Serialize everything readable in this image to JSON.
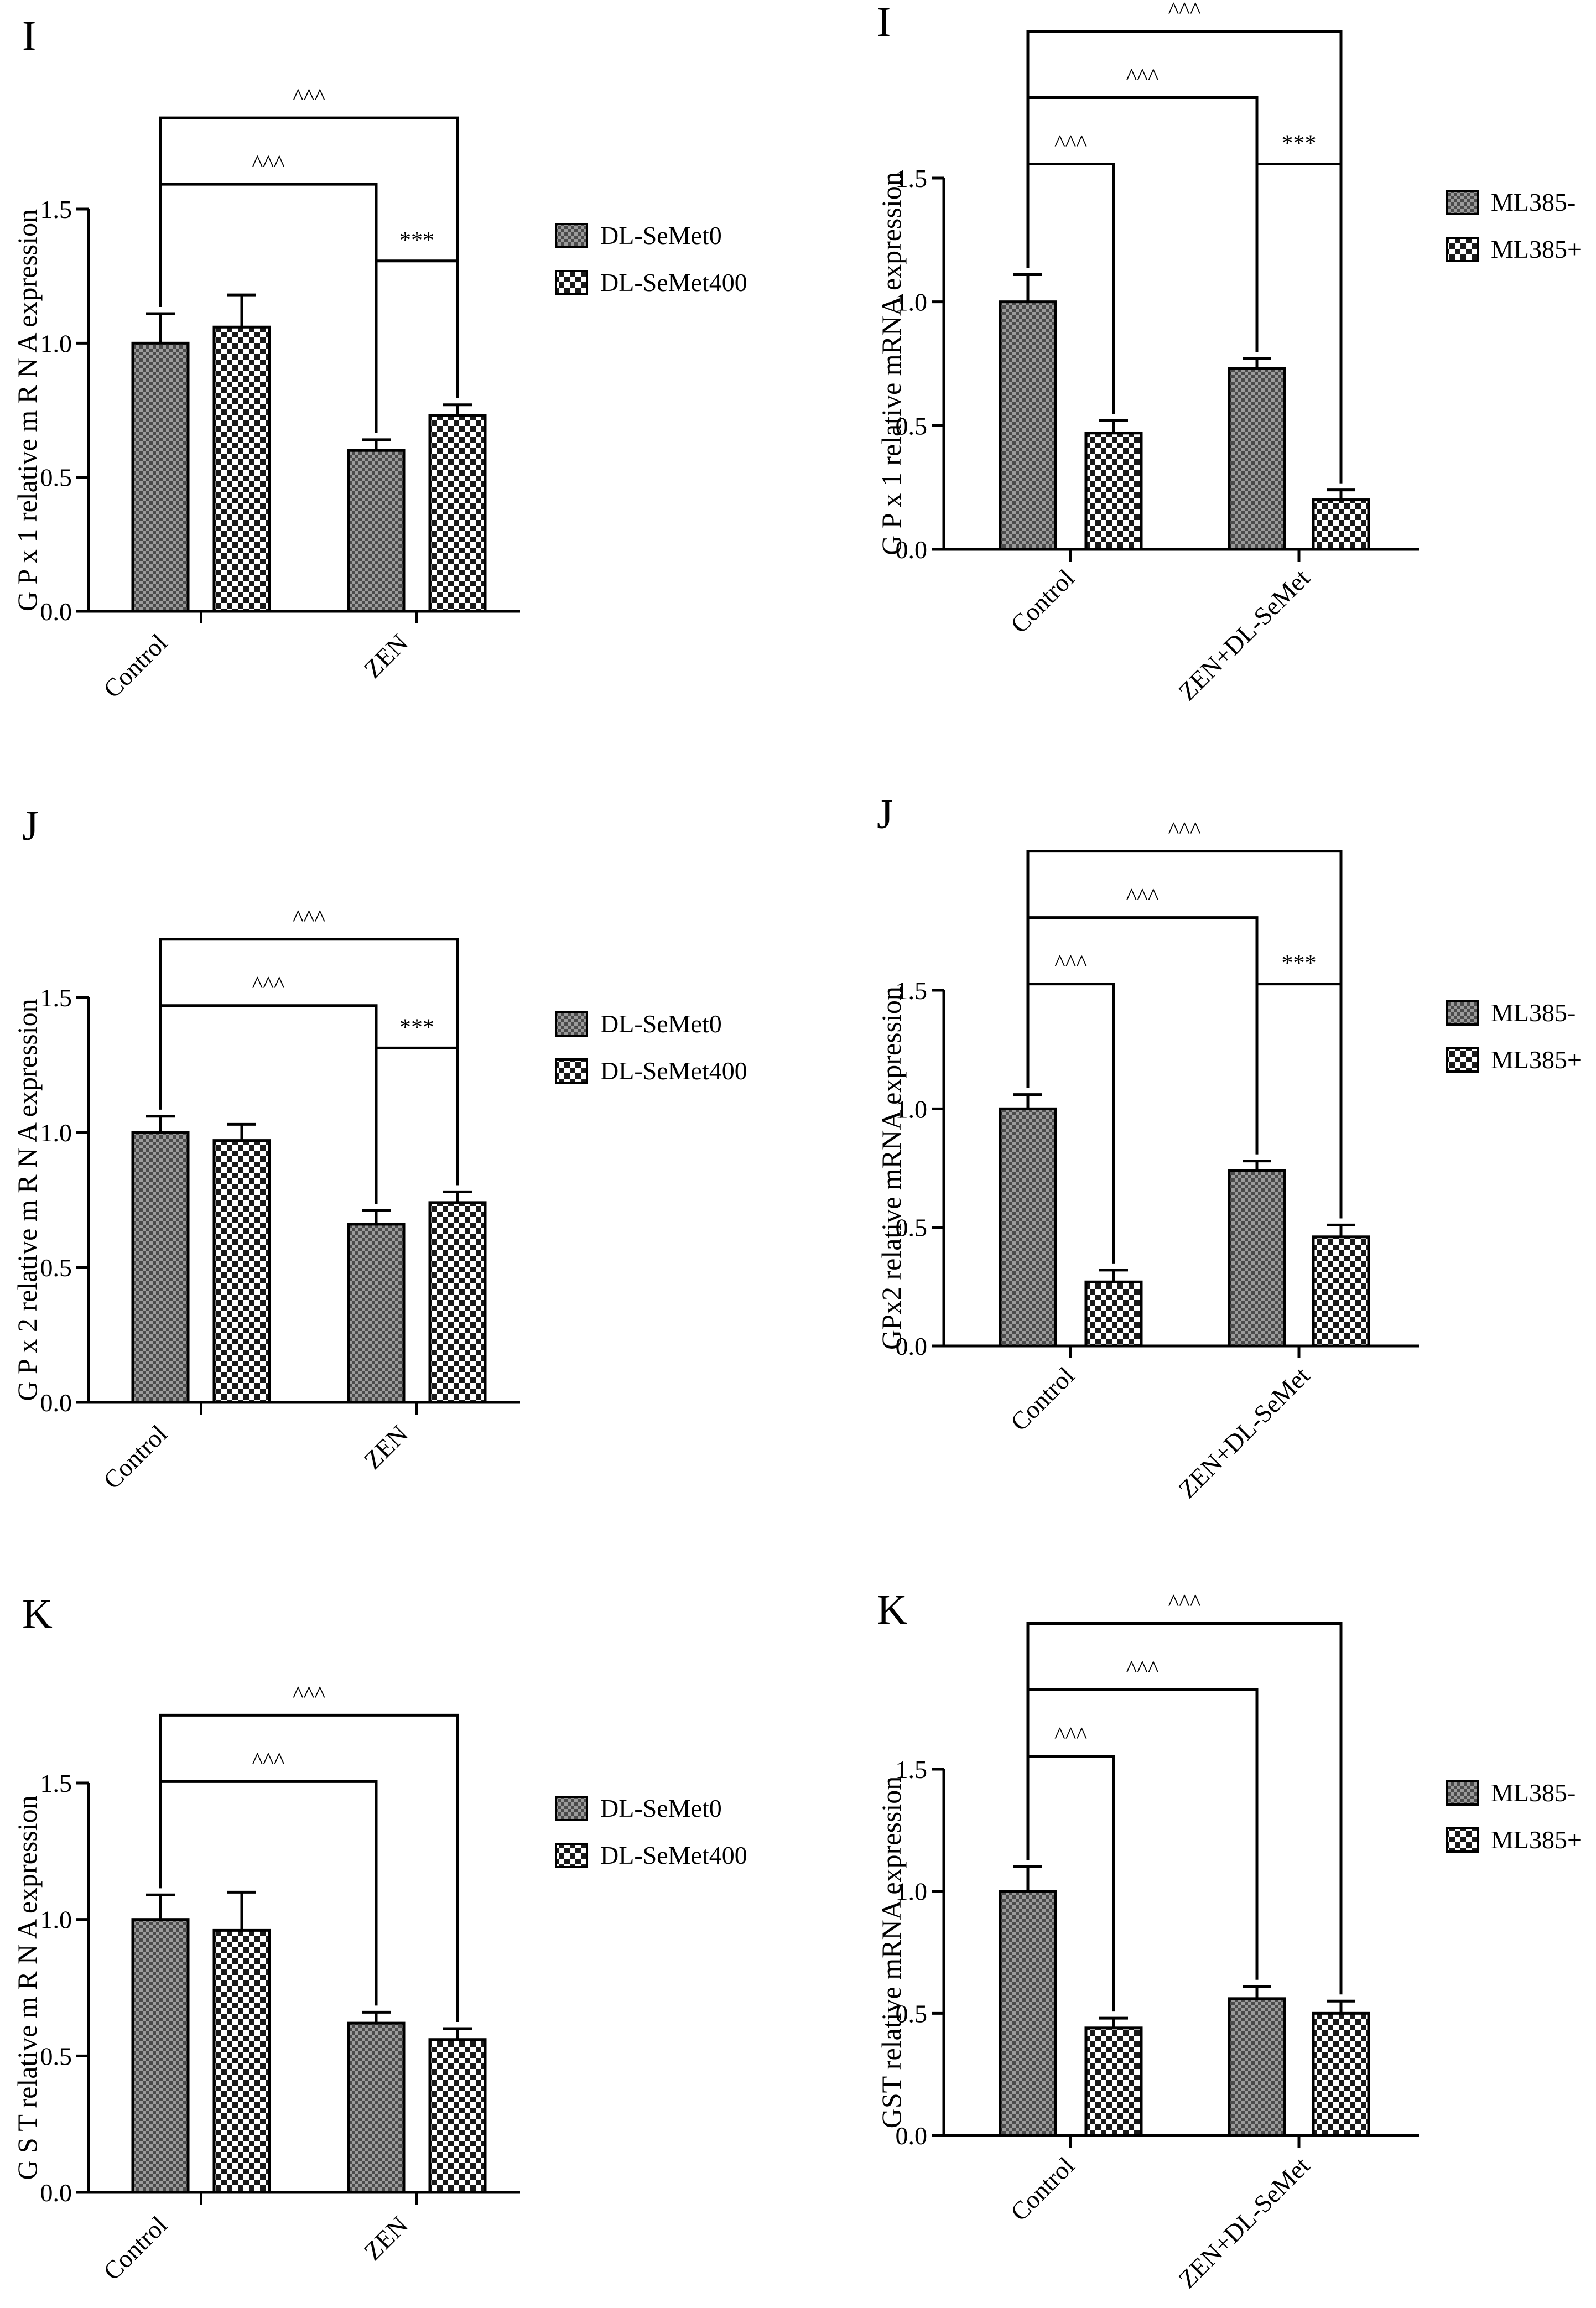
{
  "colors": {
    "ink": "#000000",
    "background": "#ffffff",
    "series_dark_fill": "#7a7a7a",
    "series_light_fill": "#ffffff"
  },
  "chart_data": [
    {
      "type": "bar",
      "panel": "I",
      "ylabel": "G P x 1  relative  m R N A  expression",
      "categories": [
        "Control",
        "ZEN"
      ],
      "series": [
        {
          "name": "DL-SeMet0",
          "pattern": "dark-check",
          "values": [
            1.0,
            0.6
          ],
          "errors": [
            0.11,
            0.04
          ]
        },
        {
          "name": "DL-SeMet400",
          "pattern": "light-check",
          "values": [
            1.06,
            0.73
          ],
          "errors": [
            0.12,
            0.04
          ]
        }
      ],
      "ylim": [
        0,
        1.5
      ],
      "yticks": [
        "0.0",
        "0.5",
        "1.0",
        "1.5"
      ],
      "brackets": [
        {
          "from": [
            0,
            0
          ],
          "to": [
            1,
            1
          ],
          "label": "^^^",
          "tier": 2
        },
        {
          "from": [
            0,
            0
          ],
          "to": [
            1,
            0
          ],
          "label": "^^^",
          "tier": 1
        },
        {
          "from": [
            1,
            0
          ],
          "to": [
            1,
            1
          ],
          "label": "***",
          "tier": 0
        }
      ]
    },
    {
      "type": "bar",
      "panel": "I",
      "ylabel": "G P x 1  relative  mRNA  expression",
      "categories": [
        "Control",
        "ZEN+DL-SeMet"
      ],
      "series": [
        {
          "name": "ML385-",
          "pattern": "dark-check",
          "values": [
            1.0,
            0.73
          ],
          "errors": [
            0.11,
            0.04
          ]
        },
        {
          "name": "ML385+",
          "pattern": "light-check",
          "values": [
            0.47,
            0.2
          ],
          "errors": [
            0.05,
            0.04
          ]
        }
      ],
      "ylim": [
        0,
        1.5
      ],
      "yticks": [
        "0.0",
        "0.5",
        "1.0",
        "1.5"
      ],
      "brackets": [
        {
          "from": [
            0,
            0
          ],
          "to": [
            1,
            1
          ],
          "label": "^^^",
          "tier": 3
        },
        {
          "from": [
            0,
            0
          ],
          "to": [
            1,
            0
          ],
          "label": "^^^",
          "tier": 2
        },
        {
          "from": [
            0,
            0
          ],
          "to": [
            0,
            1
          ],
          "label": "^^^",
          "tier": 1
        },
        {
          "from": [
            1,
            0
          ],
          "to": [
            1,
            1
          ],
          "label": "***",
          "tier": 1
        }
      ]
    },
    {
      "type": "bar",
      "panel": "J",
      "ylabel": "G P x 2  relative  m R N A  expression",
      "categories": [
        "Control",
        "ZEN"
      ],
      "series": [
        {
          "name": "DL-SeMet0",
          "pattern": "dark-check",
          "values": [
            1.0,
            0.66
          ],
          "errors": [
            0.06,
            0.05
          ]
        },
        {
          "name": "DL-SeMet400",
          "pattern": "light-check",
          "values": [
            0.97,
            0.74
          ],
          "errors": [
            0.06,
            0.04
          ]
        }
      ],
      "ylim": [
        0,
        1.5
      ],
      "yticks": [
        "0.0",
        "0.5",
        "1.0",
        "1.5"
      ],
      "brackets": [
        {
          "from": [
            0,
            0
          ],
          "to": [
            1,
            1
          ],
          "label": "^^^",
          "tier": 2
        },
        {
          "from": [
            0,
            0
          ],
          "to": [
            1,
            0
          ],
          "label": "^^^",
          "tier": 1
        },
        {
          "from": [
            1,
            0
          ],
          "to": [
            1,
            1
          ],
          "label": "***",
          "tier": 0
        }
      ]
    },
    {
      "type": "bar",
      "panel": "J",
      "ylabel": "GPx2  relative  mRNA  expression",
      "categories": [
        "Control",
        "ZEN+DL-SeMet"
      ],
      "series": [
        {
          "name": "ML385-",
          "pattern": "dark-check",
          "values": [
            1.0,
            0.74
          ],
          "errors": [
            0.06,
            0.04
          ]
        },
        {
          "name": "ML385+",
          "pattern": "light-check",
          "values": [
            0.27,
            0.46
          ],
          "errors": [
            0.05,
            0.05
          ]
        }
      ],
      "ylim": [
        0,
        1.5
      ],
      "yticks": [
        "0.0",
        "0.5",
        "1.0",
        "1.5"
      ],
      "brackets": [
        {
          "from": [
            0,
            0
          ],
          "to": [
            1,
            1
          ],
          "label": "^^^",
          "tier": 3
        },
        {
          "from": [
            0,
            0
          ],
          "to": [
            1,
            0
          ],
          "label": "^^^",
          "tier": 2
        },
        {
          "from": [
            0,
            0
          ],
          "to": [
            0,
            1
          ],
          "label": "^^^",
          "tier": 1
        },
        {
          "from": [
            1,
            0
          ],
          "to": [
            1,
            1
          ],
          "label": "***",
          "tier": 1
        }
      ]
    },
    {
      "type": "bar",
      "panel": "K",
      "ylabel": "G S T  relative  m R N A  expression",
      "categories": [
        "Control",
        "ZEN"
      ],
      "series": [
        {
          "name": "DL-SeMet0",
          "pattern": "dark-check",
          "values": [
            1.0,
            0.62
          ],
          "errors": [
            0.09,
            0.04
          ]
        },
        {
          "name": "DL-SeMet400",
          "pattern": "light-check",
          "values": [
            0.96,
            0.56
          ],
          "errors": [
            0.14,
            0.04
          ]
        }
      ],
      "ylim": [
        0,
        1.5
      ],
      "yticks": [
        "0.0",
        "0.5",
        "1.0",
        "1.5"
      ],
      "brackets": [
        {
          "from": [
            0,
            0
          ],
          "to": [
            1,
            1
          ],
          "label": "^^^",
          "tier": 2
        },
        {
          "from": [
            0,
            0
          ],
          "to": [
            1,
            0
          ],
          "label": "^^^",
          "tier": 1
        }
      ]
    },
    {
      "type": "bar",
      "panel": "K",
      "ylabel": "GST  relative  mRNA  expression",
      "categories": [
        "Control",
        "ZEN+DL-SeMet"
      ],
      "series": [
        {
          "name": "ML385-",
          "pattern": "dark-check",
          "values": [
            1.0,
            0.56
          ],
          "errors": [
            0.1,
            0.05
          ]
        },
        {
          "name": "ML385+",
          "pattern": "light-check",
          "values": [
            0.44,
            0.5
          ],
          "errors": [
            0.04,
            0.05
          ]
        }
      ],
      "ylim": [
        0,
        1.5
      ],
      "yticks": [
        "0.0",
        "0.5",
        "1.0",
        "1.5"
      ],
      "brackets": [
        {
          "from": [
            0,
            0
          ],
          "to": [
            1,
            1
          ],
          "label": "^^^",
          "tier": 3
        },
        {
          "from": [
            0,
            0
          ],
          "to": [
            1,
            0
          ],
          "label": "^^^",
          "tier": 2
        },
        {
          "from": [
            0,
            0
          ],
          "to": [
            0,
            1
          ],
          "label": "^^^",
          "tier": 1
        }
      ]
    }
  ]
}
